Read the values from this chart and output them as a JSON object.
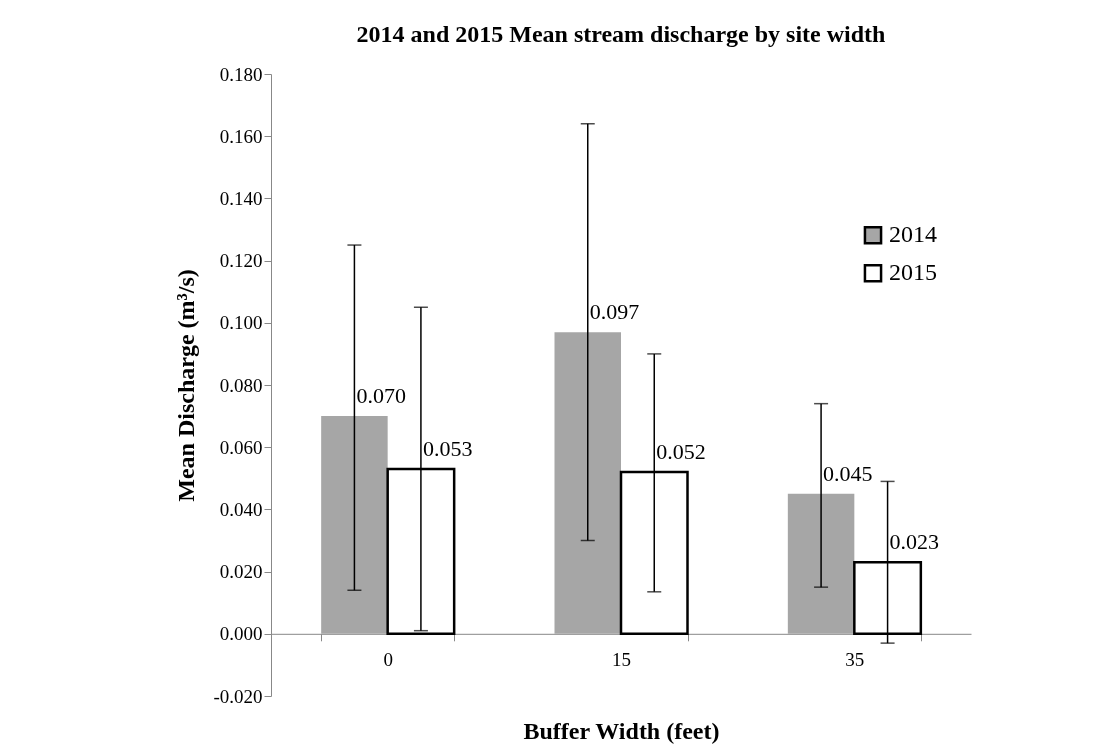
{
  "chart_data": {
    "type": "bar",
    "title": "2014 and 2015 Mean stream discharge by site width",
    "xlabel": "Buffer Width (feet)",
    "ylabel": "Mean Discharge (m³/s)",
    "categories": [
      "0",
      "15",
      "35"
    ],
    "series": [
      {
        "name": "2014",
        "color": "#a6a6a6",
        "values": [
          0.07,
          0.097,
          0.045
        ],
        "value_labels": [
          "0.070",
          "0.097",
          "0.045"
        ],
        "errors": [
          [
            0.014,
            0.125
          ],
          [
            0.03,
            0.164
          ],
          [
            0.015,
            0.074
          ]
        ]
      },
      {
        "name": "2015",
        "color": "#ffffff",
        "values": [
          0.053,
          0.052,
          0.023
        ],
        "value_labels": [
          "0.053",
          "0.052",
          "0.023"
        ],
        "errors": [
          [
            0.001,
            0.105
          ],
          [
            0.0135,
            0.09
          ],
          [
            -0.003,
            0.049
          ]
        ]
      }
    ],
    "ylim": [
      -0.02,
      0.18
    ],
    "yticks": [
      {
        "value": -0.02,
        "label": "-0.020"
      },
      {
        "value": 0,
        "label": "0.000"
      },
      {
        "value": 0.02,
        "label": "0.020"
      },
      {
        "value": 0.04,
        "label": "0.040"
      },
      {
        "value": 0.06,
        "label": "0.060"
      },
      {
        "value": 0.08,
        "label": "0.080"
      },
      {
        "value": 0.1,
        "label": "0.100"
      },
      {
        "value": 0.12,
        "label": "0.120"
      },
      {
        "value": 0.14,
        "label": "0.140"
      },
      {
        "value": 0.16,
        "label": "0.160"
      },
      {
        "value": 0.18,
        "label": "0.180"
      }
    ],
    "legend": "right",
    "grid": false
  }
}
